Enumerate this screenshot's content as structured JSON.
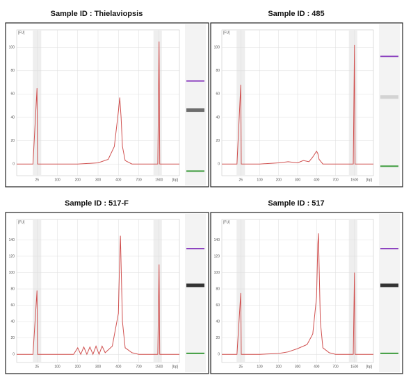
{
  "chart_data": [
    {
      "type": "line",
      "title": "Sample ID : Thielaviopsis",
      "x_label": "[bp]",
      "y_label": "[FU]",
      "color": "#d0504f",
      "grid": true,
      "xlim": [
        15,
        3000
      ],
      "xticks": [
        25,
        100,
        200,
        300,
        400,
        700,
        1500
      ],
      "ylim": [
        -10,
        115
      ],
      "yticks": [
        0,
        20,
        40,
        60,
        80,
        100
      ],
      "x": [
        15,
        20,
        23,
        25,
        27,
        30,
        100,
        200,
        300,
        350,
        380,
        400,
        420,
        440,
        460,
        500,
        600,
        700,
        1000,
        1400,
        1450,
        1500,
        1550,
        1600,
        3000
      ],
      "values": [
        0,
        0,
        0,
        65,
        0,
        0,
        0,
        0,
        1,
        4,
        15,
        45,
        57,
        40,
        15,
        3,
        0,
        0,
        0,
        0,
        0,
        105,
        0,
        0,
        0
      ]
    },
    {
      "type": "line",
      "title": "Sample ID : 485",
      "x_label": "[bp]",
      "y_label": "[FU]",
      "color": "#d0504f",
      "grid": true,
      "xlim": [
        15,
        3000
      ],
      "xticks": [
        25,
        100,
        200,
        300,
        400,
        700,
        1500
      ],
      "ylim": [
        -10,
        115
      ],
      "yticks": [
        0,
        20,
        40,
        60,
        80,
        100
      ],
      "x": [
        15,
        20,
        23,
        25,
        27,
        30,
        100,
        200,
        250,
        300,
        330,
        360,
        380,
        400,
        420,
        440,
        470,
        500,
        700,
        1000,
        1450,
        1500,
        1550,
        3000
      ],
      "values": [
        0,
        0,
        0,
        68,
        0,
        0,
        0,
        1,
        2,
        1,
        3,
        2,
        6,
        11,
        9,
        4,
        2,
        0,
        0,
        0,
        0,
        102,
        0,
        0
      ]
    },
    {
      "type": "line",
      "title": "Sample ID : 517-F",
      "x_label": "[bp]",
      "y_label": "[FU]",
      "color": "#d0504f",
      "grid": true,
      "xlim": [
        15,
        3000
      ],
      "xticks": [
        25,
        100,
        200,
        300,
        400,
        700,
        1500
      ],
      "ylim": [
        -10,
        165
      ],
      "yticks": [
        0,
        20,
        40,
        60,
        80,
        100,
        120,
        140
      ],
      "x": [
        15,
        20,
        23,
        25,
        27,
        30,
        100,
        180,
        200,
        215,
        230,
        245,
        260,
        275,
        290,
        305,
        320,
        335,
        370,
        400,
        420,
        430,
        440,
        460,
        500,
        600,
        700,
        1000,
        1450,
        1500,
        1550,
        3000
      ],
      "values": [
        0,
        0,
        0,
        78,
        0,
        0,
        0,
        0,
        8,
        0,
        9,
        0,
        9,
        0,
        10,
        0,
        10,
        2,
        10,
        50,
        120,
        145,
        110,
        40,
        8,
        2,
        0,
        0,
        0,
        110,
        0,
        0
      ]
    },
    {
      "type": "line",
      "title": "Sample ID : 517",
      "x_label": "[bp]",
      "y_label": "[FU]",
      "color": "#d0504f",
      "grid": true,
      "xlim": [
        15,
        3000
      ],
      "xticks": [
        25,
        100,
        200,
        300,
        400,
        700,
        1500
      ],
      "ylim": [
        -10,
        165
      ],
      "yticks": [
        0,
        20,
        40,
        60,
        80,
        100,
        120,
        140
      ],
      "x": [
        15,
        20,
        23,
        25,
        27,
        30,
        100,
        200,
        250,
        300,
        350,
        380,
        400,
        420,
        430,
        440,
        460,
        500,
        600,
        700,
        1000,
        1450,
        1500,
        1550,
        3000
      ],
      "values": [
        0,
        0,
        0,
        75,
        0,
        0,
        0,
        1,
        3,
        7,
        12,
        25,
        70,
        135,
        148,
        110,
        40,
        8,
        2,
        0,
        0,
        0,
        100,
        0,
        0
      ]
    }
  ]
}
